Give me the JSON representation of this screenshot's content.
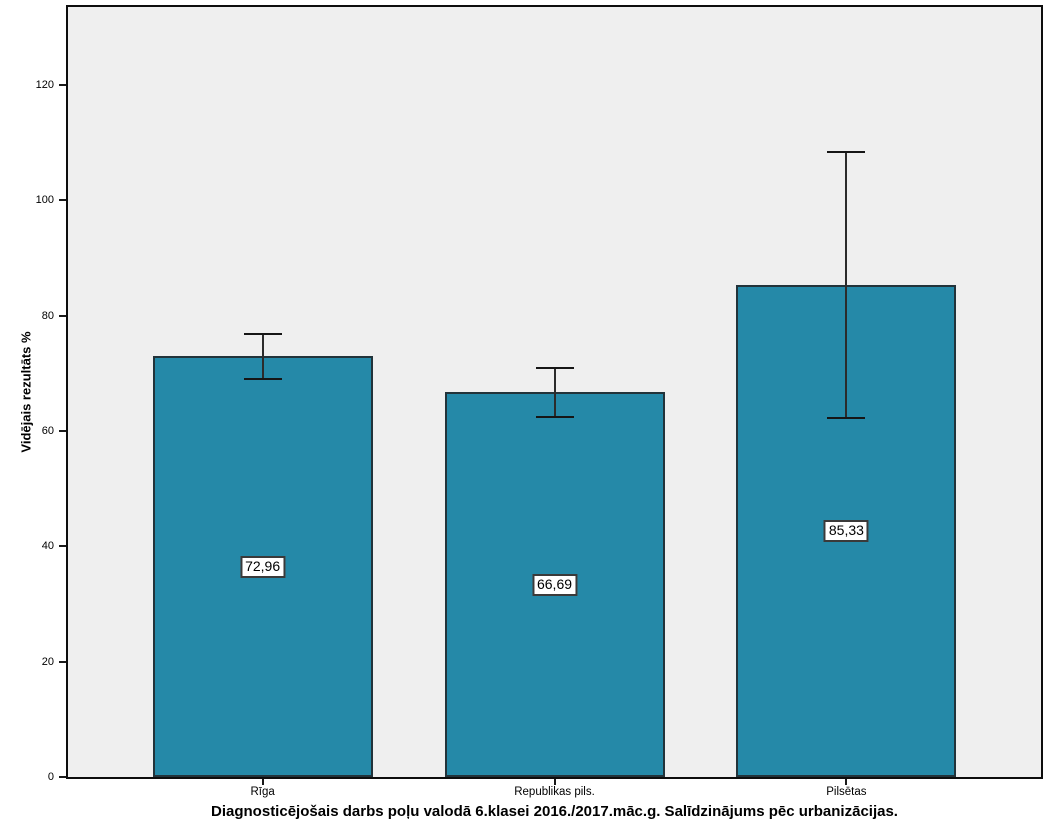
{
  "chart_data": {
    "type": "bar",
    "title": "Diagnosticējošais darbs poļu valodā 6.klasei 2016./2017.māc.g. Salīdzinājums pēc urbanizācijas.",
    "ylabel": "Vidējais rezultāts %",
    "xlabel": "",
    "categories": [
      "Rīga",
      "Republikas pils.",
      "Pilsētas"
    ],
    "values": [
      72.96,
      66.69,
      85.33
    ],
    "value_labels": [
      "72,96",
      "66,69",
      "85,33"
    ],
    "error_bars": [
      {
        "low": 69.0,
        "high": 76.8
      },
      {
        "low": 62.4,
        "high": 70.9
      },
      {
        "low": 62.2,
        "high": 108.3
      }
    ],
    "y_ticks": [
      0,
      20,
      40,
      60,
      80,
      100,
      120
    ],
    "ylim": [
      0,
      133.5
    ],
    "grid": false,
    "legend": null,
    "bar_centers_frac": [
      0.2,
      0.5,
      0.8
    ],
    "bar_color": "#2589a8",
    "bar_border_color": "#22333a",
    "error_bar_color": "#2b2b2b",
    "plot_bg": "#efefef",
    "frame_color": "#0d0d0d",
    "page_bg": "#ffffff"
  }
}
